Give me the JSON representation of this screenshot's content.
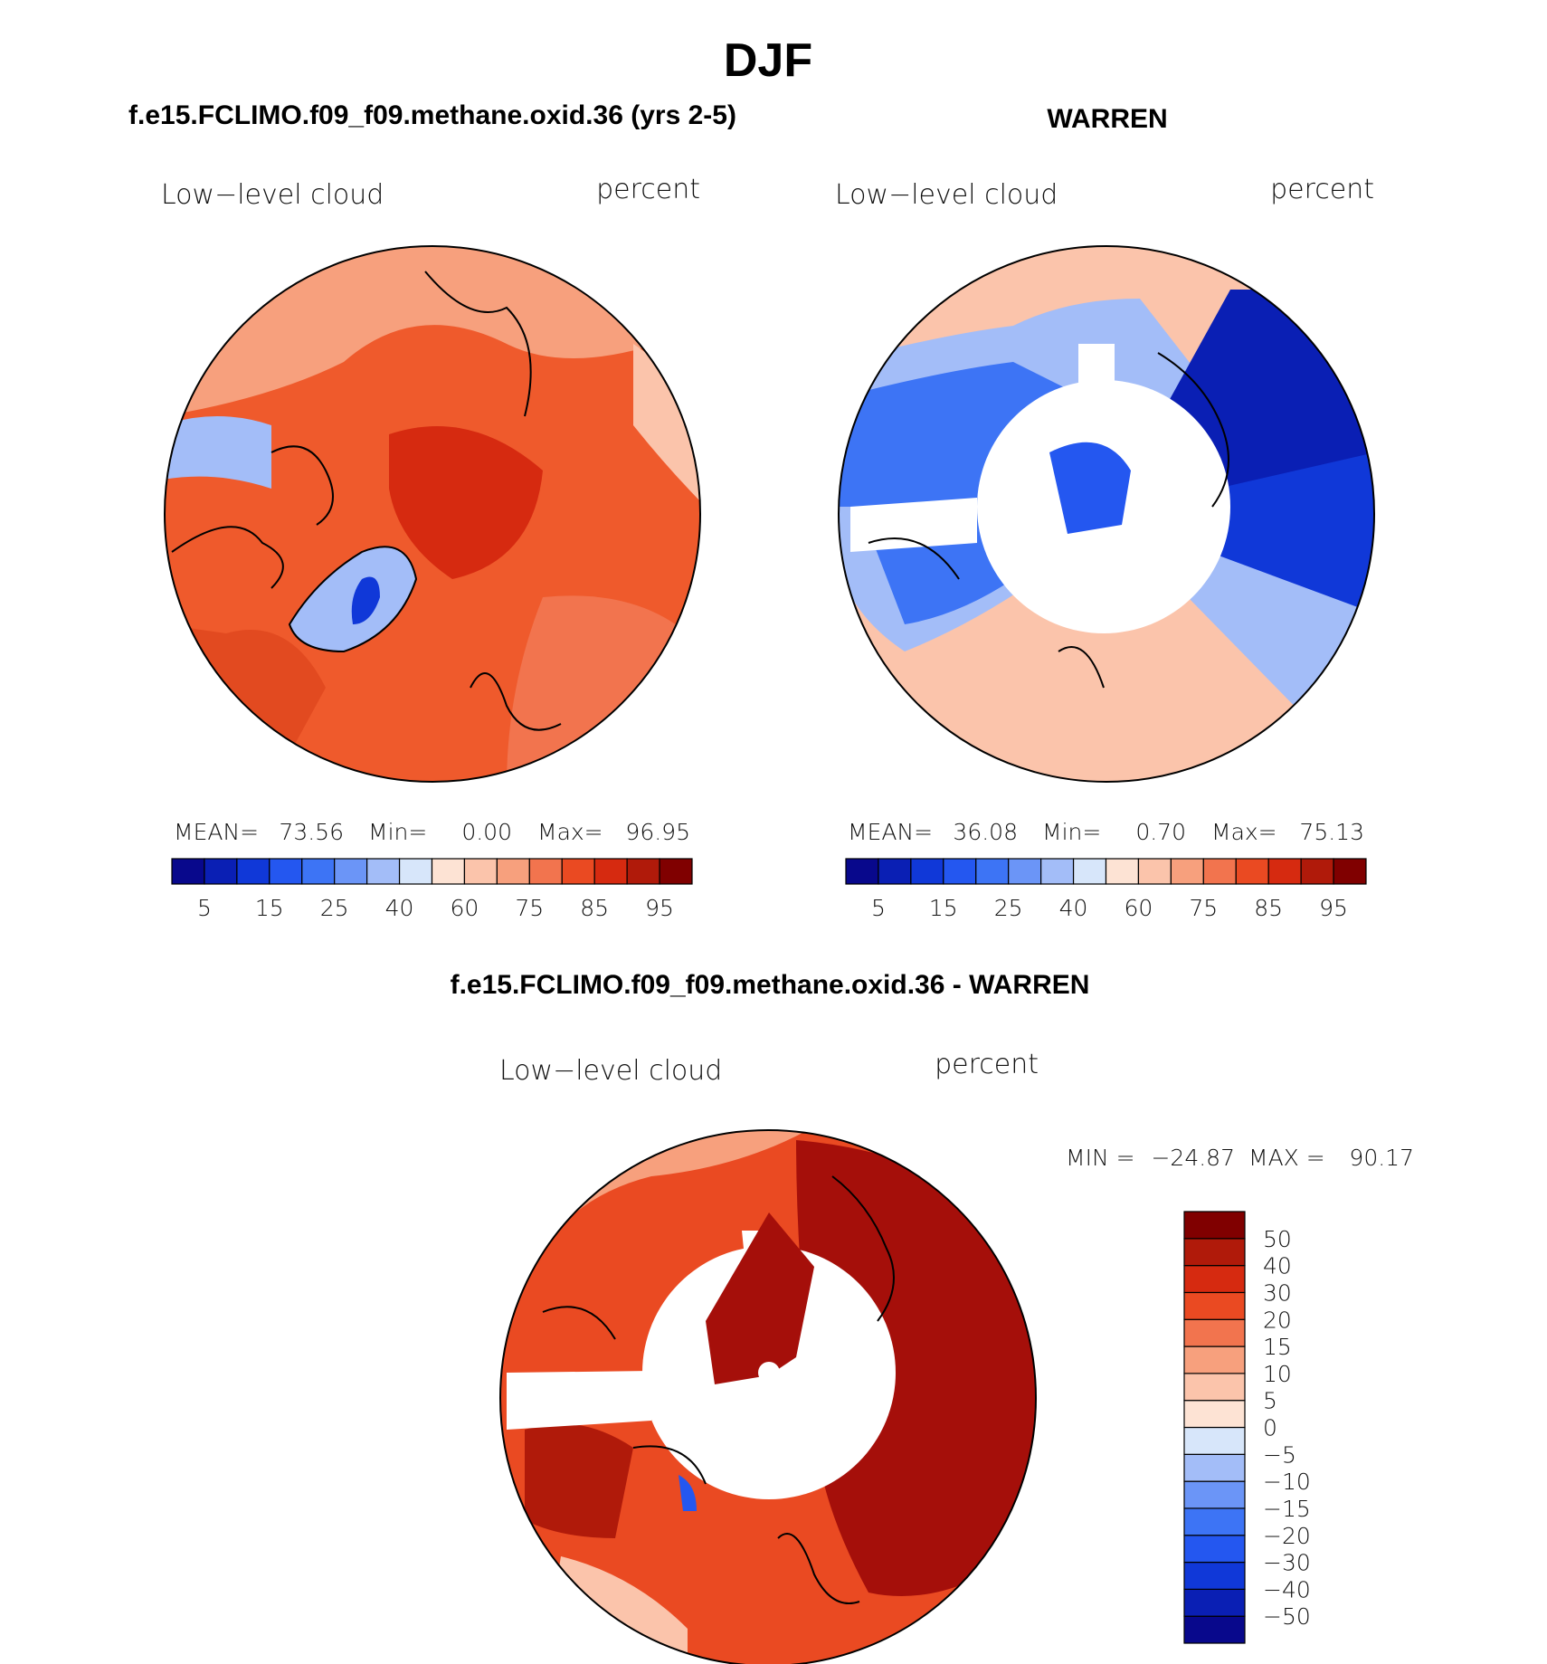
{
  "title": "DJF",
  "colors": [
    "#08088c",
    "#0a1fb4",
    "#1038d8",
    "#2457f0",
    "#3d74f5",
    "#6b95f7",
    "#a3bdf8",
    "#d7e6fa",
    "#fde3d4",
    "#fbc4ab",
    "#f7a07d",
    "#f2744e",
    "#ea4a22",
    "#d62a10",
    "#b01a0a",
    "#800000"
  ],
  "panels": [
    {
      "subtitle": "f.e15.FCLIMO.f09_f09.methane.oxid.36 (yrs 2-5)",
      "variable": "Low−level cloud",
      "units": "percent",
      "stats": [
        {
          "label": "MEAN=",
          "value": "73.56"
        },
        {
          "label": "Min=",
          "value": "0.00"
        },
        {
          "label": "Max=",
          "value": "96.95"
        }
      ],
      "colorbar_labels": [
        "5",
        "15",
        "25",
        "40",
        "60",
        "75",
        "85",
        "95"
      ]
    },
    {
      "subtitle": "WARREN",
      "variable": "Low−level cloud",
      "units": "percent",
      "stats": [
        {
          "label": "MEAN=",
          "value": "36.08"
        },
        {
          "label": "Min=",
          "value": "0.70"
        },
        {
          "label": "Max=",
          "value": "75.13"
        }
      ],
      "colorbar_labels": [
        "5",
        "15",
        "25",
        "40",
        "60",
        "75",
        "85",
        "95"
      ]
    },
    {
      "subtitle": "f.e15.FCLIMO.f09_f09.methane.oxid.36 - WARREN",
      "variable": "Low−level cloud",
      "units": "percent",
      "stats": [
        {
          "label": "MIN =",
          "value": "−24.87"
        },
        {
          "label": "MAX =",
          "value": "90.17"
        }
      ],
      "colorbar_labels": [
        "50",
        "40",
        "30",
        "20",
        "15",
        "10",
        "5",
        "0",
        "−5",
        "−10",
        "−15",
        "−20",
        "−30",
        "−40",
        "−50"
      ]
    }
  ]
}
